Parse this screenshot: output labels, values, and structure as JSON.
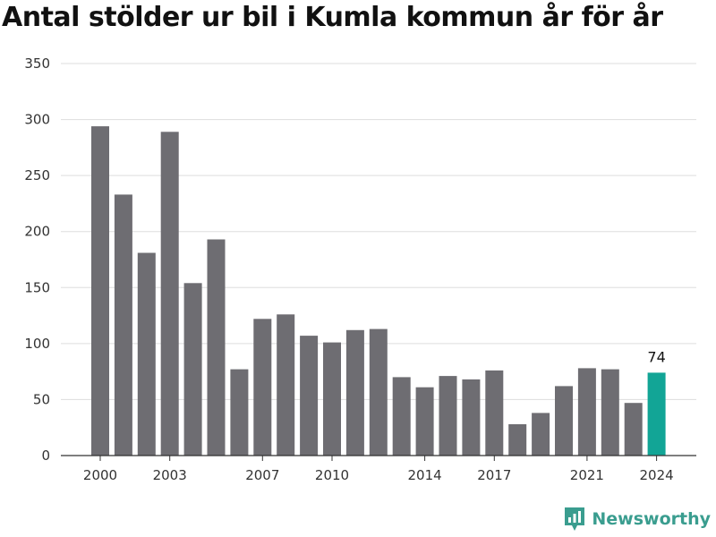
{
  "title": "Antal stölder ur bil i Kumla kommun år för år",
  "brand": {
    "name": "Newsworthy",
    "color": "#3a9d8f"
  },
  "colors": {
    "bar": "#6e6d72",
    "highlight": "#12a596",
    "grid": "#dddddd",
    "axis": "#333333"
  },
  "chart_data": {
    "type": "bar",
    "title": "Antal stölder ur bil i Kumla kommun år för år",
    "xlabel": "",
    "ylabel": "",
    "categories": [
      "2000",
      "2001",
      "2002",
      "2003",
      "2004",
      "2005",
      "2006",
      "2007",
      "2008",
      "2009",
      "2010",
      "2011",
      "2012",
      "2013",
      "2014",
      "2015",
      "2016",
      "2017",
      "2018",
      "2019",
      "2020",
      "2021",
      "2022",
      "2023",
      "2024"
    ],
    "values": [
      294,
      233,
      181,
      289,
      154,
      193,
      77,
      122,
      126,
      107,
      101,
      112,
      113,
      70,
      61,
      71,
      68,
      76,
      28,
      38,
      62,
      78,
      77,
      47,
      74
    ],
    "x_tick_labels": [
      "2000",
      "2003",
      "2007",
      "2010",
      "2014",
      "2017",
      "2021",
      "2024"
    ],
    "y_ticks": [
      0,
      50,
      100,
      150,
      200,
      250,
      300,
      350
    ],
    "ylim": [
      0,
      350
    ],
    "grid": true,
    "highlight": {
      "category": "2024",
      "label": "74"
    }
  }
}
